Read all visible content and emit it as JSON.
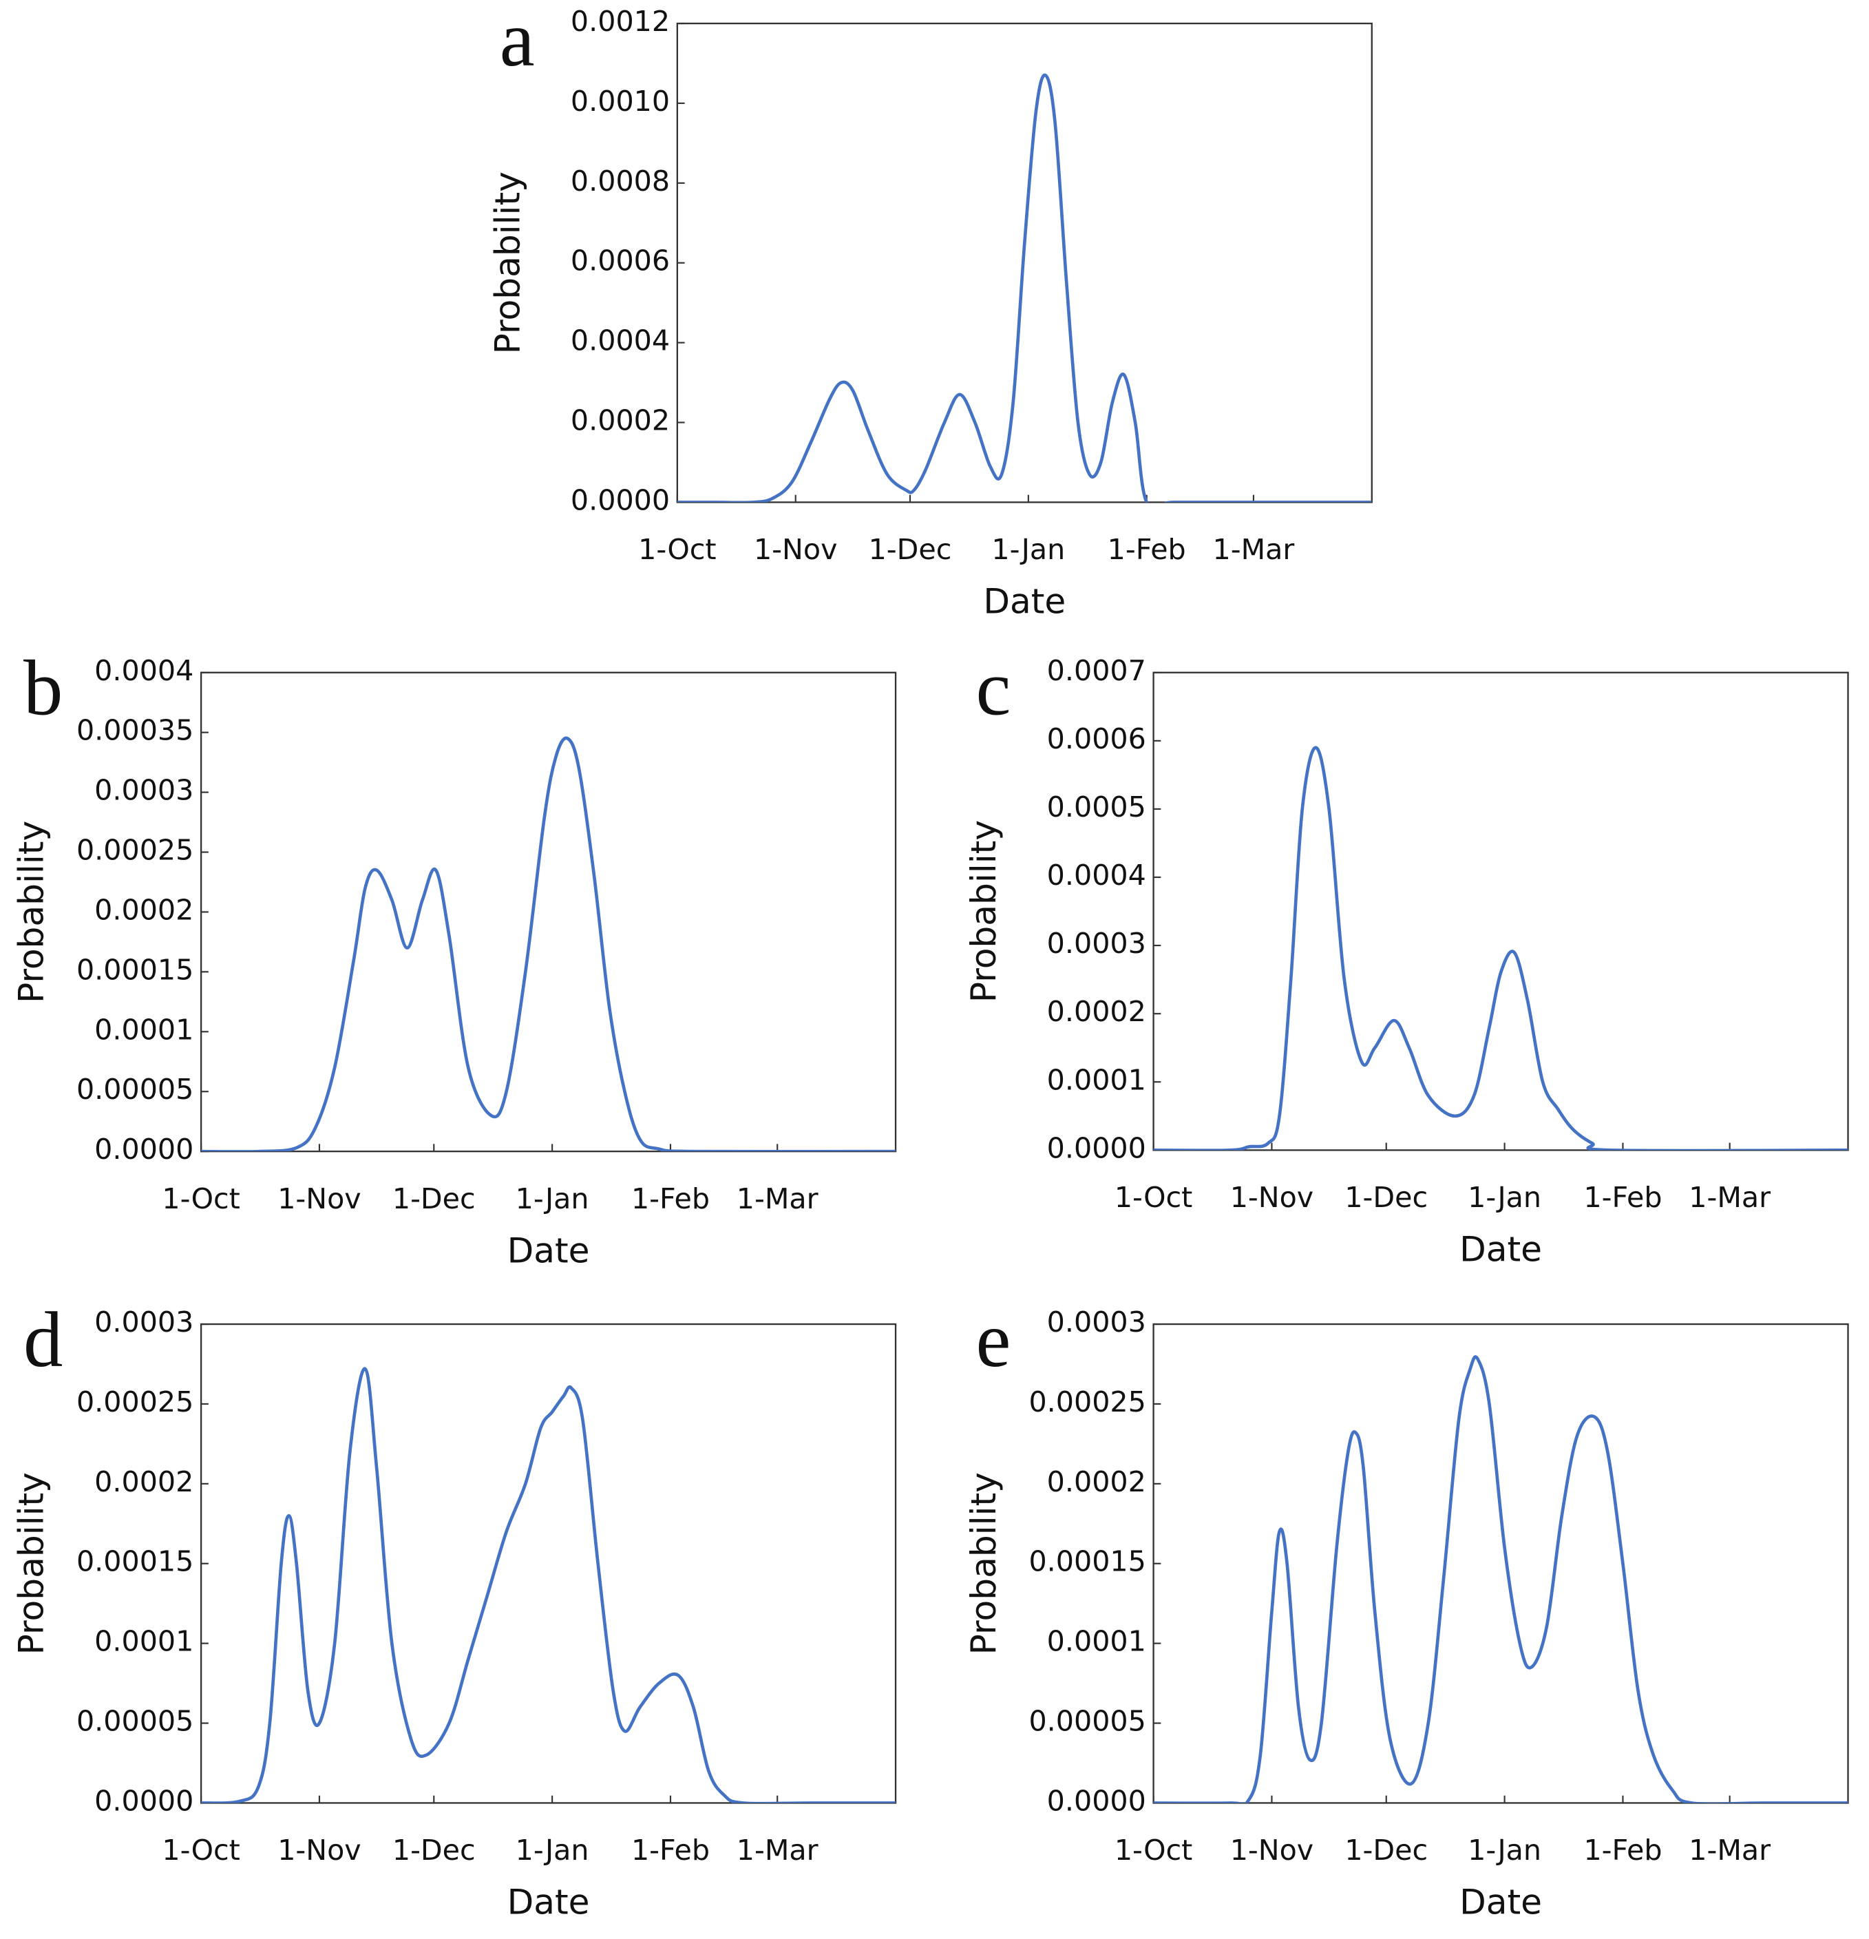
{
  "chart_data": [
    {
      "type": "line",
      "panel": "a",
      "xlabel": "Date",
      "ylabel": "Probability",
      "color": "#4472c4",
      "xlim": [
        0,
        182
      ],
      "ylim": [
        0,
        0.0012
      ],
      "xticks": [
        {
          "value": 0,
          "label": "1-Oct"
        },
        {
          "value": 31,
          "label": "1-Nov"
        },
        {
          "value": 61,
          "label": "1-Dec"
        },
        {
          "value": 92,
          "label": "1-Jan"
        },
        {
          "value": 123,
          "label": "1-Feb"
        },
        {
          "value": 151,
          "label": "1-Mar"
        }
      ],
      "yticks": [
        {
          "value": 0,
          "label": "0.0000"
        },
        0.0002,
        0.0004,
        0.0006,
        0.0008,
        {
          "value": 0.001,
          "label": "0.0010"
        },
        0.0012
      ],
      "x": [
        0,
        10,
        20,
        25,
        30,
        35,
        40,
        43,
        46,
        50,
        55,
        60,
        62,
        65,
        70,
        74,
        78,
        82,
        85,
        88,
        91,
        94,
        96.5,
        99,
        102,
        105,
        108,
        111,
        114,
        117,
        120,
        123,
        130,
        150,
        182
      ],
      "values": [
        0,
        0,
        0,
        1e-05,
        5e-05,
        0.00015,
        0.00026,
        0.0003,
        0.00028,
        0.00018,
        7e-05,
        3e-05,
        3e-05,
        8e-05,
        0.0002,
        0.00027,
        0.0002,
        9e-05,
        7e-05,
        0.00025,
        0.00065,
        0.00098,
        0.00107,
        0.00095,
        0.00055,
        0.0002,
        7e-05,
        0.0001,
        0.00025,
        0.00032,
        0.0002,
        0,
        0,
        0,
        0
      ]
    },
    {
      "type": "line",
      "panel": "b",
      "xlabel": "Date",
      "ylabel": "Probability",
      "color": "#4472c4",
      "xlim": [
        0,
        182
      ],
      "ylim": [
        0,
        0.0004
      ],
      "xticks": [
        {
          "value": 0,
          "label": "1-Oct"
        },
        {
          "value": 31,
          "label": "1-Nov"
        },
        {
          "value": 61,
          "label": "1-Dec"
        },
        {
          "value": 92,
          "label": "1-Jan"
        },
        {
          "value": 123,
          "label": "1-Feb"
        },
        {
          "value": 151,
          "label": "1-Mar"
        }
      ],
      "yticks": [
        {
          "value": 0,
          "label": "0.0000"
        },
        5e-05,
        0.0001,
        0.00015,
        0.0002,
        0.00025,
        0.0003,
        0.00035,
        0.0004
      ],
      "x": [
        0,
        15,
        25,
        30,
        35,
        40,
        43,
        46,
        50,
        54,
        58,
        61.5,
        65,
        70,
        76,
        80,
        85,
        90,
        93,
        96,
        99,
        103,
        107,
        111,
        115,
        120,
        130,
        182
      ],
      "values": [
        0,
        0,
        3e-06,
        2e-05,
        7e-05,
        0.00016,
        0.00022,
        0.000235,
        0.00021,
        0.00017,
        0.00021,
        0.000235,
        0.00018,
        7e-05,
        3e-05,
        5e-05,
        0.00015,
        0.00028,
        0.00033,
        0.000345,
        0.00032,
        0.00023,
        0.00012,
        5e-05,
        1e-05,
        2e-06,
        0,
        0
      ]
    },
    {
      "type": "line",
      "panel": "c",
      "xlabel": "Date",
      "ylabel": "Probability",
      "color": "#4472c4",
      "xlim": [
        0,
        182
      ],
      "ylim": [
        0,
        0.0007
      ],
      "xticks": [
        {
          "value": 0,
          "label": "1-Oct"
        },
        {
          "value": 31,
          "label": "1-Nov"
        },
        {
          "value": 61,
          "label": "1-Dec"
        },
        {
          "value": 92,
          "label": "1-Jan"
        },
        {
          "value": 123,
          "label": "1-Feb"
        },
        {
          "value": 151,
          "label": "1-Mar"
        }
      ],
      "yticks": [
        {
          "value": 0,
          "label": "0.0000"
        },
        0.0001,
        0.0002,
        0.0003,
        0.0004,
        0.0005,
        0.0006,
        0.0007
      ],
      "x": [
        0,
        20,
        25,
        30,
        33,
        36,
        39,
        42.5,
        46,
        50,
        54.5,
        58,
        63,
        67,
        72,
        79,
        84,
        88,
        91,
        94.5,
        98,
        102,
        106,
        110,
        115,
        120,
        182
      ],
      "values": [
        0,
        0,
        5e-06,
        1e-05,
        5e-05,
        0.00025,
        0.0005,
        0.00059,
        0.0005,
        0.00025,
        0.00013,
        0.00015,
        0.00019,
        0.00015,
        8e-05,
        5e-05,
        8e-05,
        0.00018,
        0.00026,
        0.00029,
        0.00022,
        0.0001,
        6e-05,
        3e-05,
        1e-05,
        0,
        0
      ]
    },
    {
      "type": "line",
      "panel": "d",
      "xlabel": "Date",
      "ylabel": "Probability",
      "color": "#4472c4",
      "xlim": [
        0,
        182
      ],
      "ylim": [
        0,
        0.0003
      ],
      "xticks": [
        {
          "value": 0,
          "label": "1-Oct"
        },
        {
          "value": 31,
          "label": "1-Nov"
        },
        {
          "value": 61,
          "label": "1-Dec"
        },
        {
          "value": 92,
          "label": "1-Jan"
        },
        {
          "value": 123,
          "label": "1-Feb"
        },
        {
          "value": 151,
          "label": "1-Mar"
        }
      ],
      "yticks": [
        {
          "value": 0,
          "label": "0.0000"
        },
        5e-05,
        0.0001,
        0.00015,
        0.0002,
        0.00025,
        0.0003
      ],
      "x": [
        0,
        10,
        15,
        18,
        21,
        23,
        25,
        28,
        31,
        35,
        39,
        43,
        46,
        50,
        55,
        59,
        65,
        70,
        75,
        80,
        85,
        89,
        92,
        95,
        97,
        100,
        104,
        108,
        111,
        115,
        120,
        125,
        129,
        133,
        137,
        142,
        160,
        182
      ],
      "values": [
        0,
        1e-06,
        1e-05,
        5e-05,
        0.00015,
        0.00018,
        0.00015,
        7e-05,
        5e-05,
        0.0001,
        0.00022,
        0.000272,
        0.00021,
        0.0001,
        4e-05,
        3e-05,
        5e-05,
        9e-05,
        0.00013,
        0.00017,
        0.0002,
        0.000235,
        0.000245,
        0.000255,
        0.00026,
        0.00024,
        0.00015,
        7e-05,
        4.5e-05,
        6e-05,
        7.5e-05,
        8e-05,
        6e-05,
        2e-05,
        5e-06,
        0,
        0,
        0
      ]
    },
    {
      "type": "line",
      "panel": "e",
      "xlabel": "Date",
      "ylabel": "Probability",
      "color": "#4472c4",
      "xlim": [
        0,
        182
      ],
      "ylim": [
        0,
        0.0003
      ],
      "xticks": [
        {
          "value": 0,
          "label": "1-Oct"
        },
        {
          "value": 31,
          "label": "1-Nov"
        },
        {
          "value": 61,
          "label": "1-Dec"
        },
        {
          "value": 92,
          "label": "1-Jan"
        },
        {
          "value": 123,
          "label": "1-Feb"
        },
        {
          "value": 151,
          "label": "1-Mar"
        }
      ],
      "yticks": [
        {
          "value": 0,
          "label": "0.0000"
        },
        5e-05,
        0.0001,
        0.00015,
        0.0002,
        0.00025,
        0.0003
      ],
      "x": [
        0,
        20,
        25,
        28,
        31,
        33,
        35,
        38,
        41,
        44,
        48,
        51,
        53,
        55,
        58,
        62,
        67.5,
        72,
        76,
        80,
        83,
        85,
        88,
        92,
        96,
        99,
        103,
        107,
        111,
        115.5,
        119,
        123,
        127,
        131,
        136,
        141,
        160,
        182
      ],
      "values": [
        0,
        0,
        2e-06,
        3e-05,
        0.00012,
        0.00017,
        0.00015,
        6e-05,
        2.7e-05,
        5e-05,
        0.00016,
        0.00022,
        0.000232,
        0.00021,
        0.00012,
        4e-05,
        1.2e-05,
        5e-05,
        0.00014,
        0.00024,
        0.000272,
        0.000278,
        0.00025,
        0.00016,
        0.0001,
        8.5e-05,
        0.00011,
        0.00018,
        0.00023,
        0.000242,
        0.00022,
        0.00015,
        7e-05,
        3e-05,
        8e-06,
        0,
        0,
        0
      ]
    }
  ]
}
